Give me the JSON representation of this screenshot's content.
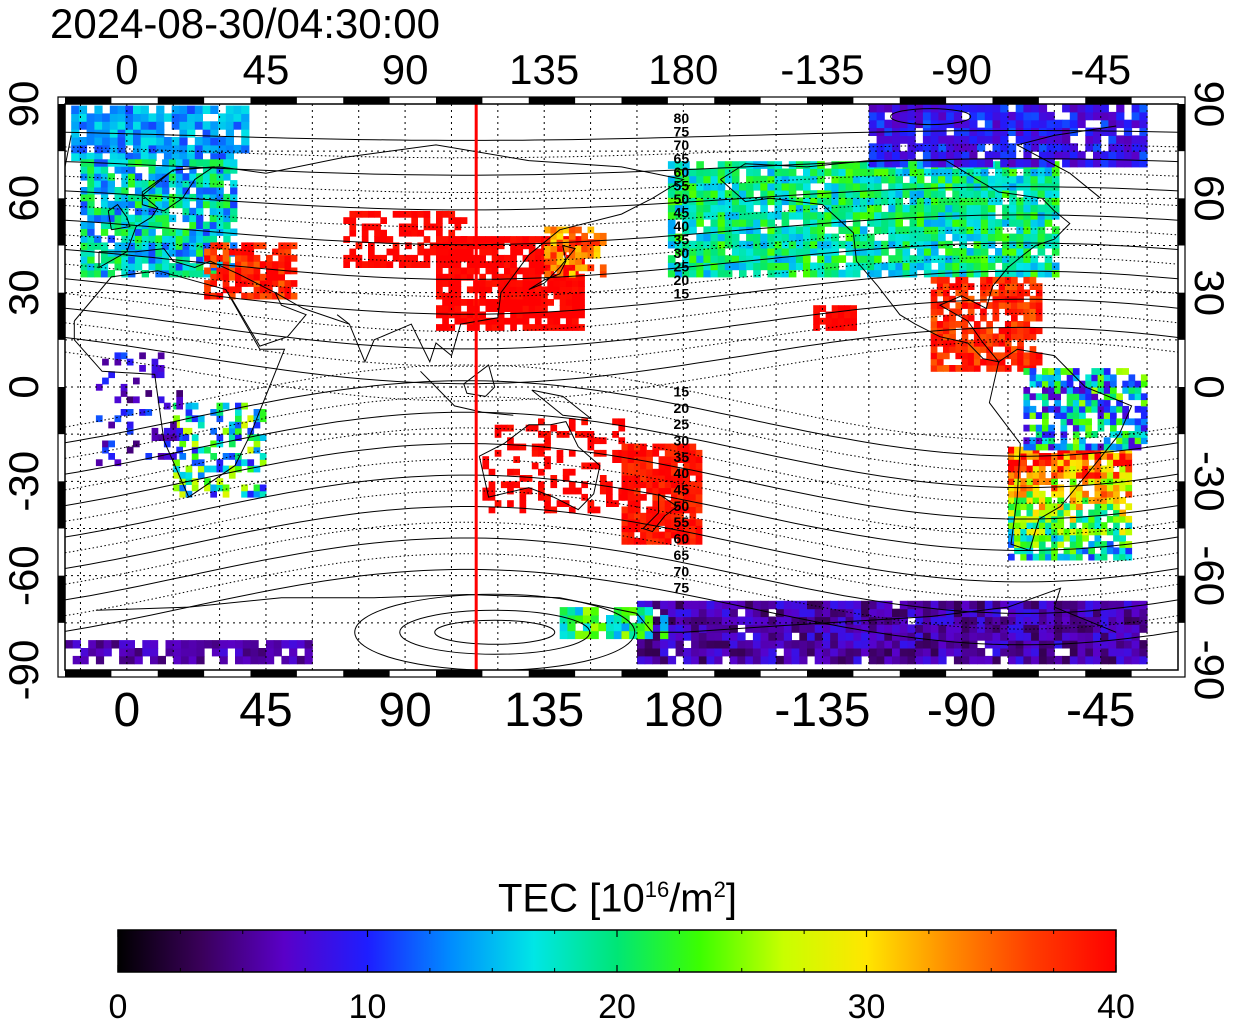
{
  "timestamp": "2024-08-30/04:30:00",
  "map": {
    "projection": "cylindrical",
    "lon_ticks_top": [
      "0",
      "45",
      "90",
      "135",
      "180",
      "-135",
      "-90",
      "-45"
    ],
    "lon_ticks_bottom": [
      "0",
      "45",
      "90",
      "135",
      "180",
      "-135",
      "-90",
      "-45"
    ],
    "lat_ticks_left": [
      "90",
      "60",
      "30",
      "0",
      "-30",
      "-60",
      "-90"
    ],
    "lat_ticks_right": [
      "90",
      "60",
      "30",
      "0",
      "-30",
      "-60",
      "-90"
    ],
    "lon_tick_values": [
      0,
      45,
      90,
      135,
      180,
      -135,
      -90,
      -45
    ],
    "lat_tick_values": [
      90,
      60,
      30,
      0,
      -30,
      -60,
      -90
    ],
    "lon_range": [
      -20,
      340
    ],
    "lat_range": [
      -90,
      90
    ],
    "grid": "dotted 15-degree graticule",
    "marker_line": {
      "lon": 113,
      "color": "#ff0000"
    },
    "contour_labels_north": [
      "80",
      "75",
      "70",
      "65",
      "60",
      "55",
      "50",
      "45",
      "40",
      "35",
      "30",
      "25",
      "20",
      "15"
    ],
    "contour_labels_south": [
      "15",
      "20",
      "25",
      "30",
      "35",
      "40",
      "45",
      "50",
      "55",
      "60",
      "65",
      "70",
      "75"
    ]
  },
  "colorbar": {
    "title_base": "TEC  [10",
    "title_exp1": "16",
    "title_mid": "/m",
    "title_exp2": "2",
    "title_end": "]",
    "tick_labels": [
      "0",
      "10",
      "20",
      "30",
      "40"
    ],
    "ticks": [
      0,
      10,
      20,
      30,
      40
    ],
    "range": [
      0,
      40
    ],
    "colors": [
      "#000000",
      "#3a005a",
      "#5a00c8",
      "#1e1eff",
      "#008cff",
      "#00e6e6",
      "#00e676",
      "#3cff00",
      "#c8ff00",
      "#ffe600",
      "#ff8c00",
      "#ff3c00",
      "#ff0000"
    ]
  }
}
